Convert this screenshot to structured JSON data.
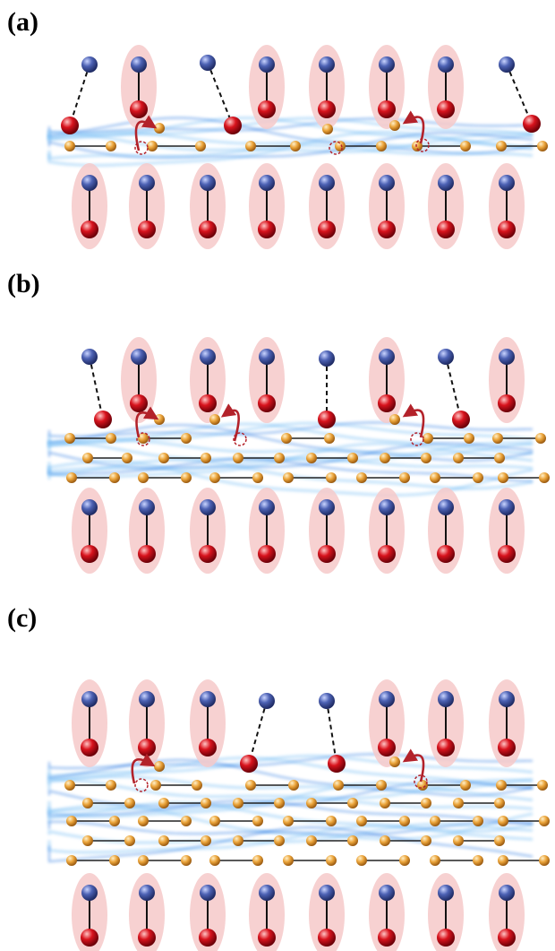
{
  "panels": [
    {
      "label": "(a)",
      "midline_chains": 1
    },
    {
      "label": "(b)",
      "midline_chains": 3
    },
    {
      "label": "(c)",
      "midline_chains": 5
    }
  ],
  "colors": {
    "top_atom": "#3b4f9e",
    "bottom_atom": "#d40f1a",
    "halo": "#f6c9c9",
    "chain_atom": "#e8a23a",
    "wave": "#3f8ee6",
    "hop_arrow": "#b3222a"
  }
}
